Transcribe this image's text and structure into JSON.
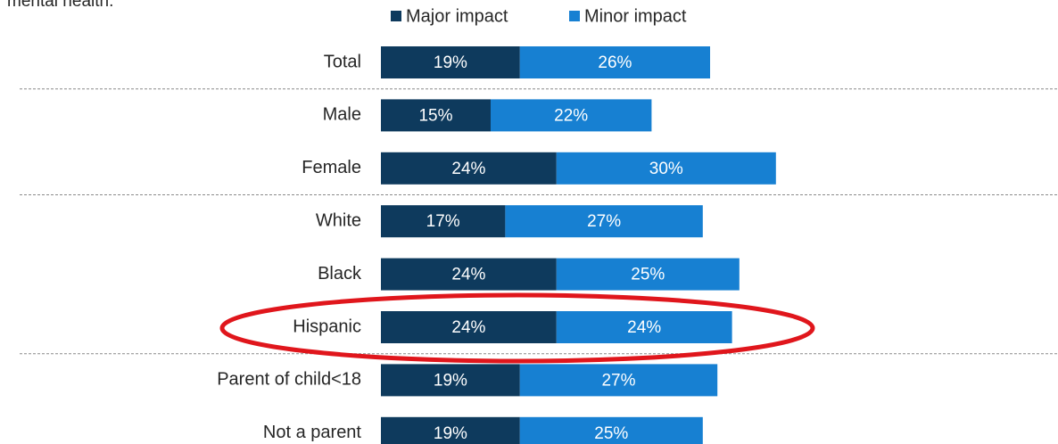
{
  "chart_data": {
    "type": "stacked-barh",
    "subtitle": "mental health.",
    "categories": [
      "Total",
      "Male",
      "Female",
      "White",
      "Black",
      "Hispanic",
      "Parent of child<18",
      "Not a parent"
    ],
    "series": [
      {
        "name": "Major impact",
        "color": "#0e3a5d",
        "values": [
          19,
          15,
          24,
          17,
          24,
          24,
          19,
          19
        ],
        "value_labels": [
          "19%",
          "15%",
          "24%",
          "17%",
          "24%",
          "24%",
          "19%",
          "19%"
        ]
      },
      {
        "name": "Minor impact",
        "color": "#1780d2",
        "values": [
          26,
          22,
          30,
          27,
          25,
          24,
          27,
          25
        ],
        "value_labels": [
          "26%",
          "22%",
          "30%",
          "27%",
          "25%",
          "24%",
          "27%",
          "25%"
        ]
      }
    ],
    "legend": "top"
  }
}
